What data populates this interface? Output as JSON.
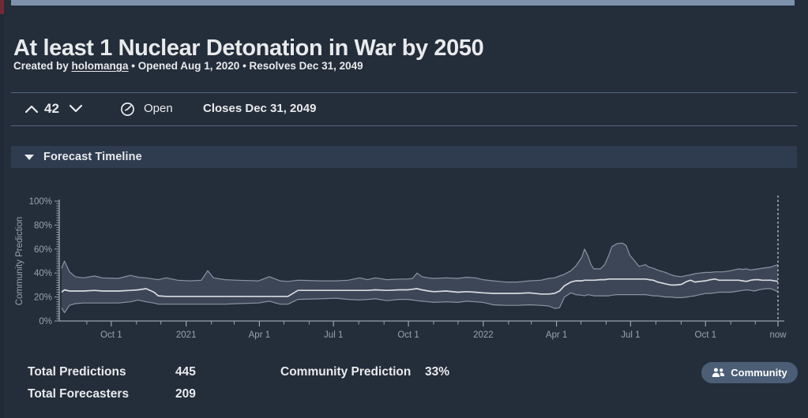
{
  "page": {
    "title": "At least 1 Nuclear Detonation in War by 2050",
    "byline": {
      "prefix": "Created by ",
      "author": "holomanga",
      "rest": " • Opened Aug 1, 2020 • Resolves Dec 31, 2049"
    }
  },
  "ticker": {
    "score": "42",
    "status": "Open",
    "closes": "Closes Dec 31, 2049"
  },
  "timeline_section": {
    "header": "Forecast Timeline"
  },
  "stats": {
    "total_predictions_label": "Total Predictions",
    "total_predictions_value": "445",
    "total_forecasters_label": "Total Forecasters",
    "total_forecasters_value": "209",
    "community_prediction_label": "Community Prediction",
    "community_prediction_value": "33%",
    "community_button_label": "Community"
  },
  "icons": {
    "vote_up": "chevron-up",
    "vote_down": "chevron-down",
    "status": "clock",
    "collapse": "triangle-down",
    "community": "users"
  },
  "colors": {
    "background": "#242d3a",
    "edge": "#202936",
    "panel-bar": "#2f3c50",
    "divider": "#5c7391",
    "text": "#e8eaec",
    "muted-text": "#99a3ae",
    "band-fill": "#3d4656",
    "band-edge": "#8a93a0",
    "median-line": "#d9dce0",
    "button-bg": "#4b5e76",
    "top-strip": "#7e92ad",
    "corner-red": "#6f2b35"
  },
  "chart_data": {
    "type": "area",
    "title": "Forecast Timeline",
    "ylabel": "Community Prediction",
    "x_domain": [
      "Aug 1, 2020",
      "now"
    ],
    "ylim": [
      0,
      100
    ],
    "grid": false,
    "legend": "none",
    "current_community_prediction_pct": 33,
    "y_ticks": [
      {
        "v": 0,
        "label": "0%"
      },
      {
        "v": 20,
        "label": "20%"
      },
      {
        "v": 40,
        "label": "40%"
      },
      {
        "v": 60,
        "label": "60%"
      },
      {
        "v": 80,
        "label": "80%"
      },
      {
        "v": 100,
        "label": "100%"
      }
    ],
    "x_ticks": [
      {
        "t": 0.0693,
        "label": "Oct 1"
      },
      {
        "t": 0.1739,
        "label": "2021"
      },
      {
        "t": 0.2761,
        "label": "Apr 1"
      },
      {
        "t": 0.3795,
        "label": "Jul 1"
      },
      {
        "t": 0.4841,
        "label": "Oct 1"
      },
      {
        "t": 0.5886,
        "label": "2022"
      },
      {
        "t": 0.6909,
        "label": "Apr 1"
      },
      {
        "t": 0.7943,
        "label": "Jul 1"
      },
      {
        "t": 0.8989,
        "label": "Oct 1"
      },
      {
        "t": 1.0,
        "label": "now"
      }
    ],
    "x_minor_ticks": [
      0.0352,
      0.1045,
      0.1386,
      0.2091,
      0.2409,
      0.3102,
      0.3455,
      0.4148,
      0.45,
      0.5193,
      0.5534,
      0.6239,
      0.6557,
      0.725,
      0.7602,
      0.8295,
      0.8648,
      0.9341,
      0.9682
    ],
    "series_format": [
      "t_fraction_of_x_axis",
      "lower_band_pct",
      "median_pct",
      "upper_band_pct"
    ],
    "points": [
      [
        0.0,
        11,
        24,
        44
      ],
      [
        0.004,
        7,
        26,
        50
      ],
      [
        0.011,
        13,
        25,
        41
      ],
      [
        0.019,
        14.5,
        25,
        37
      ],
      [
        0.03,
        15,
        25,
        36
      ],
      [
        0.046,
        15,
        25.5,
        37.5
      ],
      [
        0.057,
        15,
        25,
        36
      ],
      [
        0.079,
        15,
        25,
        35.5
      ],
      [
        0.096,
        16,
        25.5,
        38
      ],
      [
        0.107,
        17.5,
        26,
        36.5
      ],
      [
        0.118,
        16,
        27,
        36
      ],
      [
        0.129,
        15,
        24,
        35
      ],
      [
        0.135,
        14,
        21,
        34.5
      ],
      [
        0.146,
        14,
        20.5,
        36
      ],
      [
        0.162,
        14,
        20.5,
        34
      ],
      [
        0.179,
        14,
        20.5,
        33.5
      ],
      [
        0.195,
        14,
        20.5,
        34
      ],
      [
        0.204,
        14,
        20.5,
        42
      ],
      [
        0.212,
        14,
        20.5,
        36
      ],
      [
        0.228,
        14,
        20.5,
        34.5
      ],
      [
        0.245,
        14.5,
        20.5,
        34
      ],
      [
        0.275,
        15,
        20.5,
        33.5
      ],
      [
        0.29,
        16.5,
        20.5,
        37
      ],
      [
        0.305,
        14,
        20.5,
        33.5
      ],
      [
        0.316,
        14,
        20.5,
        33
      ],
      [
        0.33,
        18,
        25.5,
        34
      ],
      [
        0.361,
        18.5,
        25.5,
        33.5
      ],
      [
        0.383,
        19,
        25.5,
        33.5
      ],
      [
        0.4,
        18,
        25.5,
        34
      ],
      [
        0.416,
        17.5,
        25.5,
        36
      ],
      [
        0.427,
        18,
        25.5,
        34.5
      ],
      [
        0.438,
        18.5,
        26,
        36
      ],
      [
        0.454,
        17,
        25.5,
        34.5
      ],
      [
        0.471,
        18,
        26,
        35
      ],
      [
        0.483,
        18,
        26,
        35
      ],
      [
        0.49,
        17.5,
        26.5,
        35.5
      ],
      [
        0.496,
        17,
        27,
        40
      ],
      [
        0.503,
        16.5,
        26,
        37
      ],
      [
        0.512,
        16,
        25,
        36
      ],
      [
        0.52,
        15.5,
        24.5,
        35.5
      ],
      [
        0.537,
        16,
        25,
        36
      ],
      [
        0.553,
        15.5,
        24,
        35.5
      ],
      [
        0.565,
        16.5,
        24.5,
        36.5
      ],
      [
        0.578,
        16,
        24,
        36
      ],
      [
        0.588,
        15.5,
        23.5,
        34.5
      ],
      [
        0.603,
        13.5,
        23,
        33.5
      ],
      [
        0.62,
        13,
        23,
        32.5
      ],
      [
        0.636,
        13,
        23,
        32.5
      ],
      [
        0.653,
        13.5,
        23.5,
        33.5
      ],
      [
        0.669,
        13,
        22.5,
        34
      ],
      [
        0.68,
        12.5,
        22.5,
        35.5
      ],
      [
        0.688,
        10.5,
        23,
        36
      ],
      [
        0.695,
        11,
        25,
        37.5
      ],
      [
        0.702,
        20,
        29.5,
        39
      ],
      [
        0.711,
        23.5,
        32.5,
        42
      ],
      [
        0.718,
        22,
        33.5,
        46
      ],
      [
        0.726,
        21.5,
        33.5,
        53
      ],
      [
        0.73,
        21,
        34,
        60
      ],
      [
        0.735,
        22,
        34,
        54
      ],
      [
        0.739,
        21.5,
        34,
        47
      ],
      [
        0.743,
        21,
        34,
        43.5
      ],
      [
        0.752,
        21,
        34.5,
        43.5
      ],
      [
        0.758,
        21,
        34.5,
        47
      ],
      [
        0.764,
        21,
        35,
        55
      ],
      [
        0.768,
        21.5,
        35,
        62
      ],
      [
        0.775,
        22,
        35,
        64.5
      ],
      [
        0.783,
        22,
        35,
        65
      ],
      [
        0.788,
        22,
        35,
        63
      ],
      [
        0.793,
        22,
        35,
        55
      ],
      [
        0.8,
        22,
        35,
        50
      ],
      [
        0.806,
        22,
        35,
        45.5
      ],
      [
        0.815,
        22,
        35,
        47
      ],
      [
        0.82,
        21.5,
        34.5,
        45
      ],
      [
        0.826,
        21,
        34,
        44
      ],
      [
        0.832,
        21,
        32.5,
        42.5
      ],
      [
        0.843,
        20,
        31,
        40.5
      ],
      [
        0.851,
        20,
        30,
        38.5
      ],
      [
        0.857,
        19.5,
        30,
        37.5
      ],
      [
        0.865,
        19.5,
        30.5,
        37
      ],
      [
        0.873,
        20,
        33,
        38
      ],
      [
        0.878,
        20.5,
        34,
        38.5
      ],
      [
        0.884,
        21,
        32.5,
        39.5
      ],
      [
        0.891,
        22,
        33,
        40
      ],
      [
        0.899,
        23,
        33.5,
        40.5
      ],
      [
        0.906,
        23,
        34.5,
        40.5
      ],
      [
        0.912,
        23.5,
        35,
        41
      ],
      [
        0.918,
        24,
        34,
        41
      ],
      [
        0.923,
        24,
        34,
        41
      ],
      [
        0.934,
        24,
        34,
        42
      ],
      [
        0.945,
        25,
        34,
        43.5
      ],
      [
        0.951,
        25.5,
        33.5,
        43
      ],
      [
        0.956,
        26,
        33,
        43.5
      ],
      [
        0.962,
        25.5,
        34,
        42.5
      ],
      [
        0.967,
        25,
        34.5,
        43
      ],
      [
        0.973,
        26,
        34.5,
        43.5
      ],
      [
        0.978,
        26.5,
        34,
        44
      ],
      [
        0.984,
        27,
        34,
        44.5
      ],
      [
        0.99,
        27,
        34,
        45
      ],
      [
        1.0,
        24.5,
        33,
        47
      ]
    ]
  }
}
